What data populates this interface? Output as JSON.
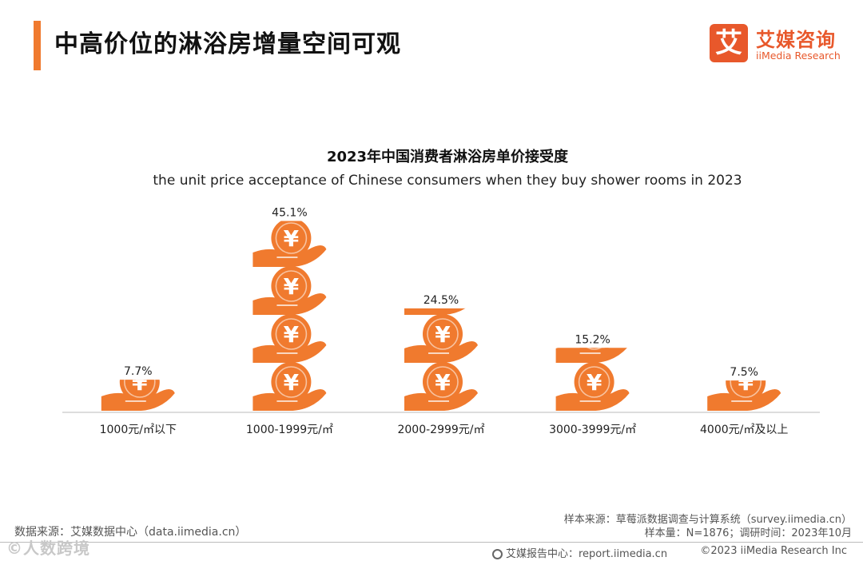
{
  "header": {
    "title": "中高价位的淋浴房增量空间可观",
    "logo_mark": "艾",
    "logo_cn": "艾媒咨询",
    "logo_en": "iiMedia Research"
  },
  "chart_data": {
    "type": "bar",
    "title": "2023年中国消费者淋浴房单价接受度",
    "subtitle": "the unit price acceptance of Chinese consumers when they buy shower rooms in 2023",
    "categories": [
      "1000元/㎡以下",
      "1000-1999元/㎡",
      "2000-2999元/㎡",
      "3000-3999元/㎡",
      "4000元/㎡及以上"
    ],
    "values": [
      7.7,
      45.1,
      24.5,
      15.2,
      7.5
    ],
    "value_labels": [
      "7.7%",
      "45.1%",
      "24.5%",
      "15.2%",
      "7.5%"
    ],
    "unit": "%",
    "glyph": "¥",
    "mark": "hand-holding-coin icon stack",
    "grid": false,
    "legend": "none",
    "color": "#f07a2e"
  },
  "footer": {
    "data_source": "数据来源：艾媒数据中心（data.iimedia.cn）",
    "sample_source": "样本来源：草莓派数据调查与计算系统（survey.iimedia.cn）",
    "sample_size": "样本量：N=1876；调研时间：2023年10月",
    "report_center": "艾媒报告中心：report.iimedia.cn",
    "copyright": "©2023  iiMedia Research  Inc",
    "watermark": "©人数跨境"
  },
  "colors": {
    "accent": "#f07a2e",
    "brand": "#e8582b"
  }
}
